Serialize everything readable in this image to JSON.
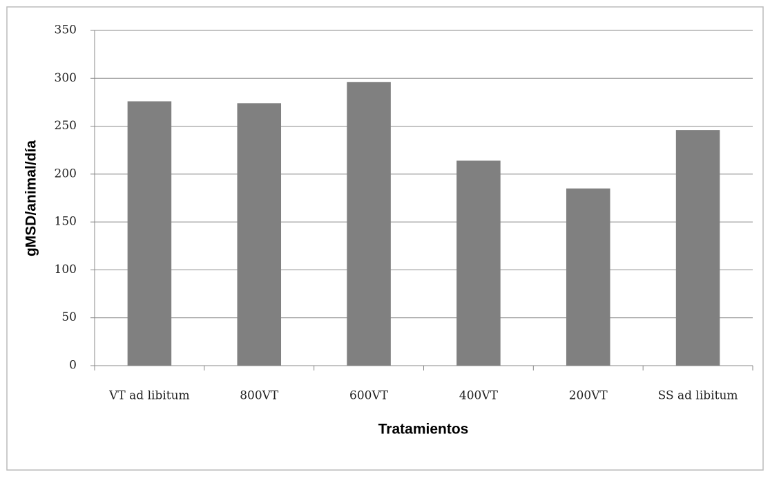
{
  "chart_data": {
    "type": "bar",
    "x_label": "Tratamientos",
    "y_label": "gMSD/animal/día",
    "categories": [
      "VT ad libitum",
      "800VT",
      "600VT",
      "400VT",
      "200VT",
      "SS ad libitum"
    ],
    "values": [
      276,
      274,
      296,
      214,
      185,
      246
    ],
    "color": "#808080",
    "ylim": [
      0,
      350
    ],
    "yticks": [
      0,
      50,
      100,
      150,
      200,
      250,
      300,
      350
    ],
    "grid": true
  }
}
